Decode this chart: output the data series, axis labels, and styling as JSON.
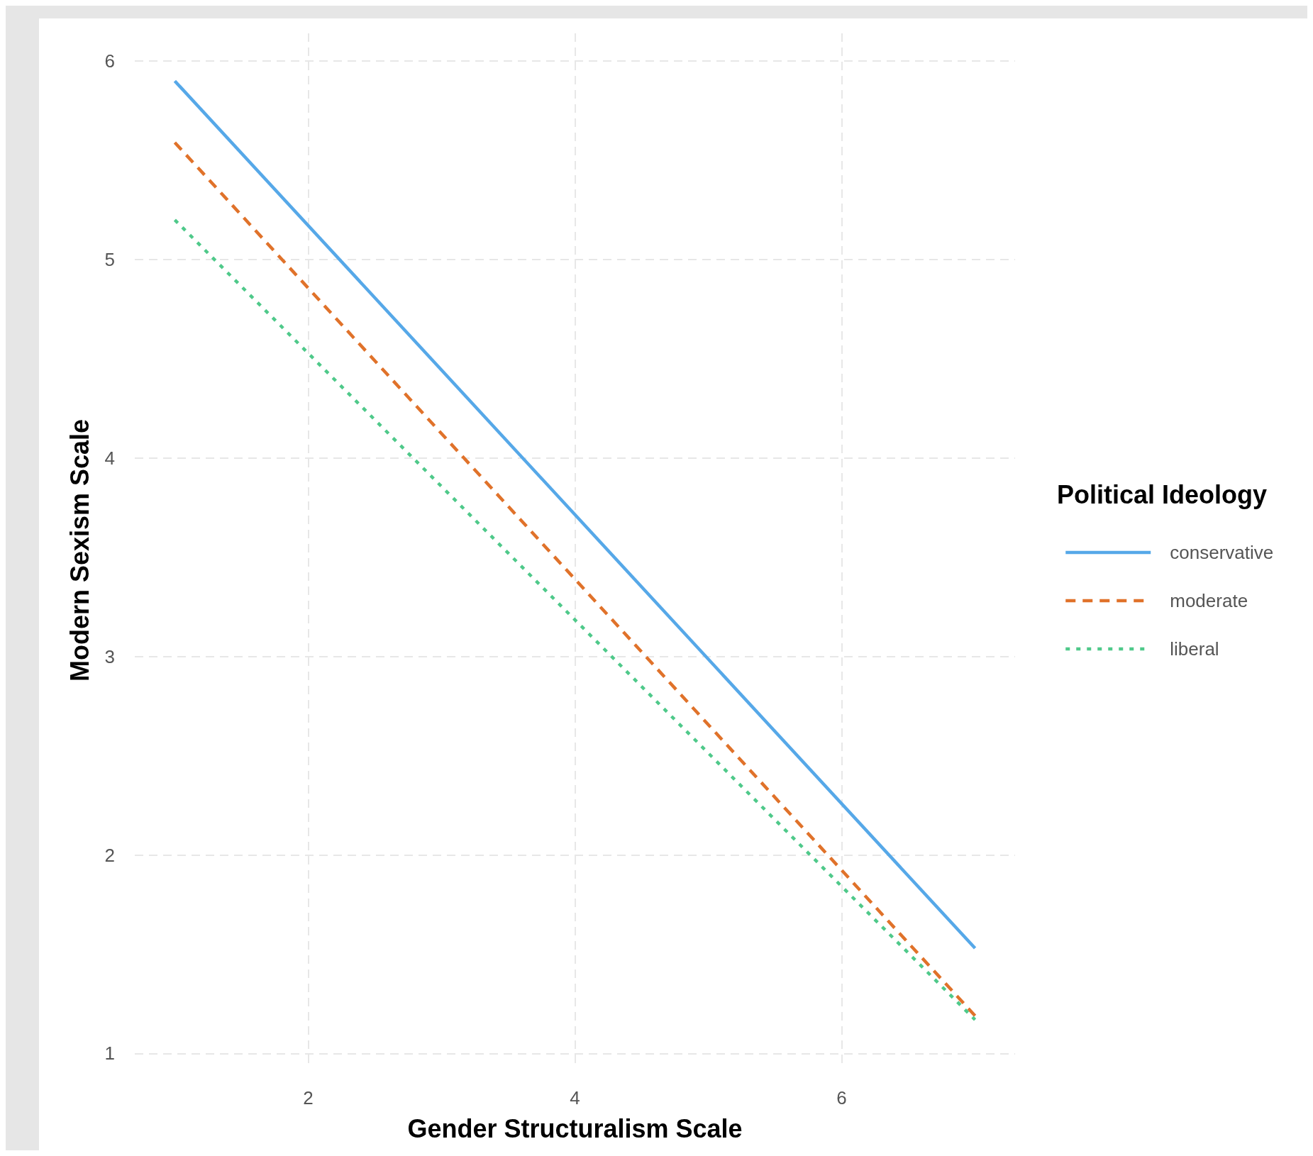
{
  "chart_data": {
    "type": "line",
    "xlabel": "Gender Structuralism Scale",
    "ylabel": "Modern Sexism Scale",
    "legend_title": "Political Ideology",
    "x": [
      1,
      7
    ],
    "series": [
      {
        "name": "conservative",
        "color": "#56a8e8",
        "line_style": "solid",
        "values": [
          5.9,
          1.53
        ]
      },
      {
        "name": "moderate",
        "color": "#e0722a",
        "line_style": "dashed",
        "values": [
          5.59,
          1.19
        ]
      },
      {
        "name": "liberal",
        "color": "#4fc98a",
        "line_style": "dotted",
        "values": [
          5.2,
          1.17
        ]
      }
    ],
    "xlim": [
      0.7,
      7.3
    ],
    "xticks": [
      2,
      4,
      6
    ],
    "ylim": [
      0.93,
      6.14
    ],
    "yticks": [
      1,
      2,
      3,
      4,
      5,
      6
    ],
    "grid": true,
    "legend": "right",
    "marker": "none"
  }
}
